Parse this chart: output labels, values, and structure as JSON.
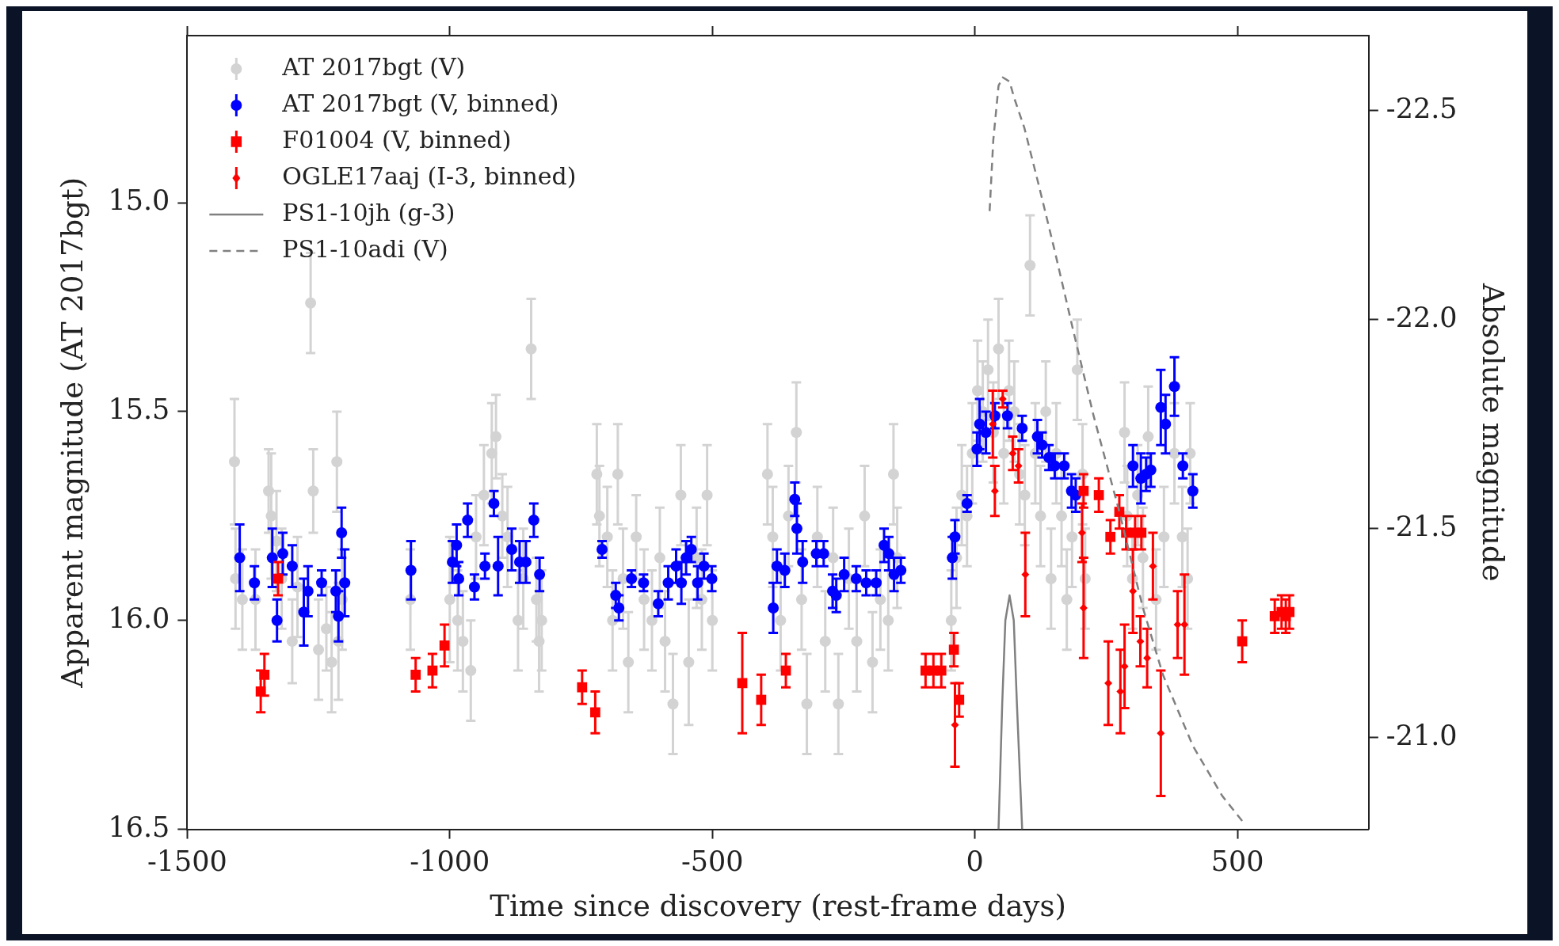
{
  "chart_data": {
    "type": "scatter",
    "xlabel": "Time since discovery (rest-frame days)",
    "ylabel": "Apparent magnitude (AT 2017bgt)",
    "y2label": "Absolute magnitude",
    "xlim": [
      -1500,
      750
    ],
    "xticks": [
      -1500,
      -1000,
      -500,
      0,
      500
    ],
    "ylim": [
      16.5,
      14.6
    ],
    "yticks": [
      {
        "value": 15,
        "label": "15.0"
      },
      {
        "value": 15.5,
        "label": "15.5"
      },
      {
        "value": 16,
        "label": "16.0"
      },
      {
        "value": 16.5,
        "label": "16.5"
      }
    ],
    "y2lim": [
      -20.78,
      -22.68
    ],
    "y2ticks": [
      {
        "value": -22.5,
        "label": "-22.5"
      },
      {
        "value": -22,
        "label": "-22.0"
      },
      {
        "value": -21.5,
        "label": "-21.5"
      },
      {
        "value": -21,
        "label": "-21.0"
      }
    ],
    "grid": false,
    "legend": "top left",
    "series": [
      {
        "name": "AT 2017bgt (V)",
        "type": "scatter",
        "marker": "circle",
        "color": "#d3d3d3",
        "x": [
          -1410,
          -1408,
          -1395,
          -1370,
          -1345,
          -1340,
          -1330,
          -1320,
          -1300,
          -1290,
          -1265,
          -1260,
          -1250,
          -1235,
          -1225,
          -1215,
          -1212,
          -1205,
          -1075,
          -1000,
          -985,
          -975,
          -960,
          -950,
          -935,
          -920,
          -912,
          -900,
          -890,
          -870,
          -860,
          -845,
          -835,
          -830,
          -825,
          -720,
          -715,
          -700,
          -690,
          -680,
          -670,
          -660,
          -645,
          -630,
          -615,
          -600,
          -590,
          -575,
          -560,
          -545,
          -530,
          -520,
          -510,
          -500,
          -395,
          -385,
          -370,
          -355,
          -340,
          -330,
          -320,
          -300,
          -285,
          -270,
          -260,
          -240,
          -225,
          -210,
          -195,
          -180,
          -165,
          -155,
          -148,
          -45,
          -35,
          -25,
          -15,
          -5,
          5,
          15,
          25,
          35,
          45,
          55,
          65,
          75,
          85,
          95,
          105,
          115,
          125,
          135,
          145,
          155,
          165,
          175,
          185,
          195,
          205,
          210,
          285,
          290,
          300,
          310,
          320,
          330,
          345,
          360,
          380,
          395,
          405,
          410
        ],
        "values": [
          15.62,
          15.9,
          15.95,
          15.95,
          15.69,
          15.75,
          15.81,
          15.9,
          16.05,
          15.92,
          15.24,
          15.69,
          16.07,
          16.02,
          16.1,
          15.62,
          16.05,
          15.95,
          15.95,
          15.95,
          16,
          16.05,
          16.12,
          15.8,
          15.7,
          15.6,
          15.56,
          15.75,
          15.8,
          16,
          15.9,
          15.35,
          15.95,
          16.05,
          16,
          15.65,
          15.75,
          15.8,
          16,
          15.65,
          15.9,
          16.1,
          15.8,
          15.95,
          16,
          15.85,
          16.05,
          16.2,
          15.7,
          16.1,
          15.85,
          15.95,
          15.7,
          16,
          15.65,
          15.8,
          16,
          15.75,
          15.55,
          15.95,
          16.2,
          15.8,
          16.05,
          15.85,
          16.2,
          15.9,
          16.05,
          15.75,
          16.1,
          15.95,
          16,
          15.65,
          15.85,
          16,
          15.85,
          15.7,
          15.75,
          15.6,
          15.45,
          15.5,
          15.4,
          15.55,
          15.35,
          15.6,
          15.45,
          15.5,
          15.65,
          15.7,
          15.15,
          15.6,
          15.75,
          15.5,
          15.9,
          15.6,
          15.75,
          15.95,
          15.8,
          15.4,
          15.65,
          15.9,
          15.55,
          15.75,
          15.9,
          15.7,
          15.85,
          15.56,
          15.95,
          15.8,
          15.6,
          15.8,
          15.9,
          15.6
        ],
        "errors": [
          0.15,
          0.12,
          0.12,
          0.12,
          0.1,
          0.15,
          0.12,
          0.12,
          0.1,
          0.12,
          0.12,
          0.1,
          0.12,
          0.1,
          0.12,
          0.12,
          0.14,
          0.12,
          0.12,
          0.15,
          0.12,
          0.12,
          0.12,
          0.1,
          0.12,
          0.12,
          0.1,
          0.1,
          0.12,
          0.12,
          0.12,
          0.12,
          0.1,
          0.12,
          0.12,
          0.12,
          0.12,
          0.12,
          0.12,
          0.12,
          0.12,
          0.12,
          0.1,
          0.12,
          0.12,
          0.12,
          0.12,
          0.12,
          0.12,
          0.15,
          0.12,
          0.12,
          0.12,
          0.12,
          0.12,
          0.12,
          0.12,
          0.12,
          0.12,
          0.12,
          0.12,
          0.12,
          0.12,
          0.12,
          0.12,
          0.12,
          0.12,
          0.12,
          0.12,
          0.12,
          0.12,
          0.12,
          0.12,
          0.12,
          0.12,
          0.12,
          0.12,
          0.12,
          0.12,
          0.12,
          0.12,
          0.12,
          0.12,
          0.12,
          0.12,
          0.12,
          0.12,
          0.12,
          0.12,
          0.12,
          0.12,
          0.12,
          0.12,
          0.12,
          0.12,
          0.12,
          0.12,
          0.12,
          0.12,
          0.12,
          0.12,
          0.12,
          0.12,
          0.12,
          0.12,
          0.12,
          0.12,
          0.12,
          0.12,
          0.12,
          0.12,
          0.12
        ]
      },
      {
        "name": "AT 2017bgt (V, binned)",
        "type": "scatter",
        "marker": "circle",
        "color": "#0000ff",
        "x": [
          -1400,
          -1372,
          -1338,
          -1329,
          -1318,
          -1300,
          -1278,
          -1270,
          -1244,
          -1217,
          -1212,
          -1206,
          -1200,
          -1074,
          -995,
          -987,
          -983,
          -966,
          -953,
          -933,
          -916,
          -908,
          -882,
          -867,
          -855,
          -840,
          -829,
          -710,
          -684,
          -678,
          -654,
          -631,
          -603,
          -584,
          -569,
          -559,
          -550,
          -540,
          -528,
          -516,
          -501,
          -384,
          -377,
          -362,
          -343,
          -339,
          -328,
          -302,
          -288,
          -271,
          -264,
          -249,
          -226,
          -207,
          -188,
          -173,
          -164,
          -154,
          -141,
          -43,
          -38,
          -15,
          4,
          9,
          21,
          38,
          62,
          90,
          119,
          128,
          141,
          152,
          170,
          184,
          192,
          301,
          316,
          326,
          335,
          354,
          363,
          380,
          396,
          415
        ],
        "values": [
          15.85,
          15.91,
          15.85,
          16,
          15.84,
          15.87,
          15.98,
          15.93,
          15.91,
          15.93,
          15.99,
          15.79,
          15.91,
          15.88,
          15.86,
          15.82,
          15.9,
          15.76,
          15.92,
          15.87,
          15.72,
          15.87,
          15.83,
          15.86,
          15.86,
          15.76,
          15.89,
          15.83,
          15.94,
          15.97,
          15.9,
          15.91,
          15.96,
          15.91,
          15.87,
          15.91,
          15.85,
          15.83,
          15.91,
          15.87,
          15.9,
          15.97,
          15.87,
          15.88,
          15.71,
          15.78,
          15.86,
          15.84,
          15.84,
          15.93,
          15.94,
          15.89,
          15.9,
          15.91,
          15.91,
          15.82,
          15.84,
          15.89,
          15.88,
          15.85,
          15.8,
          15.72,
          15.59,
          15.53,
          15.55,
          15.51,
          15.51,
          15.54,
          15.56,
          15.58,
          15.61,
          15.63,
          15.63,
          15.69,
          15.7,
          15.63,
          15.66,
          15.65,
          15.64,
          15.49,
          15.53,
          15.44,
          15.63,
          15.69
        ],
        "errors": [
          0.08,
          0.04,
          0.07,
          0.05,
          0.05,
          0.05,
          0.08,
          0.06,
          0.03,
          0.05,
          0.06,
          0.06,
          0.08,
          0.07,
          0.05,
          0.05,
          0.04,
          0.04,
          0.03,
          0.03,
          0.03,
          0.07,
          0.05,
          0.05,
          0.05,
          0.04,
          0.04,
          0.02,
          0.03,
          0.03,
          0.02,
          0.02,
          0.03,
          0.04,
          0.04,
          0.05,
          0.04,
          0.03,
          0.04,
          0.03,
          0.03,
          0.06,
          0.04,
          0.04,
          0.04,
          0.06,
          0.05,
          0.03,
          0.03,
          0.04,
          0.04,
          0.04,
          0.03,
          0.03,
          0.03,
          0.04,
          0.04,
          0.04,
          0.03,
          0.05,
          0.04,
          0.02,
          0.04,
          0.06,
          0.05,
          0.03,
          0.03,
          0.03,
          0.04,
          0.03,
          0.03,
          0.03,
          0.03,
          0.04,
          0.04,
          0.05,
          0.06,
          0.04,
          0.04,
          0.09,
          0.07,
          0.07,
          0.03,
          0.04
        ]
      },
      {
        "name": "F01004 (V, binned)",
        "type": "scatter",
        "marker": "square",
        "color": "#ff0000",
        "x": [
          -1360,
          -1353,
          -1327,
          -1065,
          -1033,
          -1010,
          -748,
          -723,
          -443,
          -407,
          -360,
          -94,
          -79,
          -64,
          -40,
          -30,
          207,
          236,
          258,
          275,
          288,
          305,
          317,
          509,
          571,
          584,
          592,
          599
        ],
        "values": [
          16.17,
          16.13,
          15.9,
          16.13,
          16.12,
          16.06,
          16.16,
          16.22,
          16.15,
          16.19,
          16.12,
          16.12,
          16.12,
          16.12,
          16.07,
          16.19,
          15.69,
          15.7,
          15.8,
          15.74,
          15.79,
          15.79,
          15.79,
          16.05,
          15.99,
          15.98,
          15.99,
          15.98
        ],
        "errors": [
          0.05,
          0.05,
          0.04,
          0.04,
          0.04,
          0.05,
          0.04,
          0.05,
          0.12,
          0.06,
          0.04,
          0.04,
          0.04,
          0.04,
          0.04,
          0.04,
          0.04,
          0.04,
          0.04,
          0.04,
          0.04,
          0.04,
          0.04,
          0.05,
          0.04,
          0.04,
          0.04,
          0.04
        ]
      },
      {
        "name": "OGLE17aaj (I-3, binned)",
        "type": "scatter",
        "marker": "diamond",
        "color": "#ff0000",
        "x": [
          -38,
          34,
          53,
          38,
          72,
          83,
          96,
          204,
          207,
          254,
          277,
          285,
          301,
          315,
          328,
          339,
          354,
          386,
          399
        ],
        "values": [
          16.25,
          15.53,
          15.47,
          15.69,
          15.6,
          15.63,
          15.89,
          15.79,
          15.97,
          16.15,
          16.17,
          16.11,
          15.93,
          16.05,
          16.09,
          15.87,
          16.27,
          16.01,
          16.01
        ],
        "errors": [
          0.1,
          0.08,
          0.02,
          0.06,
          0.04,
          0.04,
          0.1,
          0.07,
          0.12,
          0.1,
          0.1,
          0.1,
          0.1,
          0.06,
          0.07,
          0.08,
          0.15,
          0.08,
          0.12
        ]
      },
      {
        "name": "PS1-10jh (g-3)",
        "type": "line",
        "marker": "none",
        "line_style": "solid",
        "color": "#808080",
        "x": [
          45,
          52,
          58,
          66,
          74,
          80,
          90
        ],
        "values": [
          16.5,
          16.2,
          16,
          15.94,
          16,
          16.2,
          16.5
        ]
      },
      {
        "name": "PS1-10adi (V)",
        "type": "line",
        "marker": "none",
        "line_style": "dashed",
        "color": "#808080",
        "x": [
          28,
          35,
          45,
          53,
          66,
          75,
          94,
          122,
          151,
          188,
          226,
          273,
          320,
          358,
          415,
          471,
          509
        ],
        "values": [
          15.02,
          14.85,
          14.72,
          14.7,
          14.71,
          14.75,
          14.82,
          14.96,
          15.11,
          15.31,
          15.51,
          15.73,
          15.97,
          16.13,
          16.3,
          16.42,
          16.48
        ]
      }
    ]
  }
}
